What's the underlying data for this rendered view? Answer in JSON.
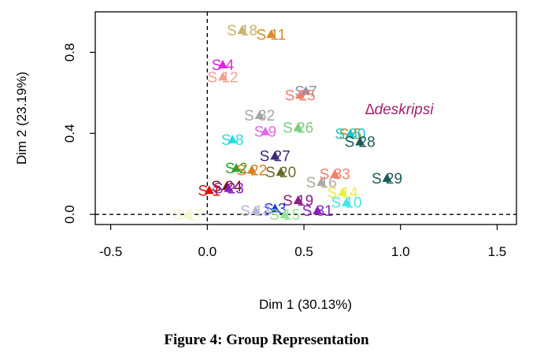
{
  "caption": "Figure 4: Group Representation",
  "chart_data": {
    "type": "scatter",
    "xlabel": "Dim 1 (30.13%)",
    "ylabel": "Dim 2 (23.19%)",
    "xlim": [
      -0.58,
      1.6
    ],
    "ylim": [
      -0.05,
      1.0
    ],
    "xticks": [
      "-0.5",
      "0.0",
      "0.5",
      "1.0",
      "1.5"
    ],
    "yticks": [
      "0.0",
      "0.4",
      "0.8"
    ],
    "reference_lines": {
      "x": 0,
      "y": 0
    },
    "legend": {
      "text": "∆deskripsi",
      "color": "#a0206e"
    },
    "points": [
      {
        "label": "S 18",
        "x": 0.18,
        "y": 0.91,
        "color": "#c8b46e"
      },
      {
        "label": "S 11",
        "x": 0.33,
        "y": 0.89,
        "color": "#d98c2a"
      },
      {
        "label": "S 4",
        "x": 0.08,
        "y": 0.74,
        "color": "#e024e0"
      },
      {
        "label": "S 7",
        "x": 0.51,
        "y": 0.61,
        "color": "#8a8fa8"
      },
      {
        "label": "S 12",
        "x": 0.08,
        "y": 0.68,
        "color": "#f4a090"
      },
      {
        "label": "S 25",
        "x": 0.48,
        "y": 0.59,
        "color": "#f07f6a"
      },
      {
        "label": "S 32",
        "x": 0.27,
        "y": 0.49,
        "color": "#a5a5a5"
      },
      {
        "label": "S 26",
        "x": 0.47,
        "y": 0.43,
        "color": "#7fcc7f"
      },
      {
        "label": "S 5",
        "x": 0.74,
        "y": 0.4,
        "color": "#bb8a2c"
      },
      {
        "label": "S 8",
        "x": 0.13,
        "y": 0.37,
        "color": "#28dede"
      },
      {
        "label": "S 9",
        "x": 0.3,
        "y": 0.41,
        "color": "#e36ae3"
      },
      {
        "label": "S 30",
        "x": 0.74,
        "y": 0.4,
        "color": "#22c8c8"
      },
      {
        "label": "S 28",
        "x": 0.79,
        "y": 0.36,
        "color": "#1e5a5a"
      },
      {
        "label": "S 27",
        "x": 0.35,
        "y": 0.29,
        "color": "#3c2a78"
      },
      {
        "label": "S 2",
        "x": 0.15,
        "y": 0.23,
        "color": "#2ea02e"
      },
      {
        "label": "S 22",
        "x": 0.23,
        "y": 0.22,
        "color": "#d7801c"
      },
      {
        "label": "S 20",
        "x": 0.38,
        "y": 0.21,
        "color": "#6a6a2a"
      },
      {
        "label": "S 16",
        "x": 0.59,
        "y": 0.16,
        "color": "#b0a8a0"
      },
      {
        "label": "S 33",
        "x": 0.66,
        "y": 0.2,
        "color": "#f07f6a"
      },
      {
        "label": "S 29",
        "x": 0.93,
        "y": 0.18,
        "color": "#1e5a5a"
      },
      {
        "label": "S 24",
        "x": 0.1,
        "y": 0.14,
        "color": "#7f1010"
      },
      {
        "label": "S 1",
        "x": 0.01,
        "y": 0.12,
        "color": "#e01010"
      },
      {
        "label": "S 23",
        "x": 0.11,
        "y": 0.13,
        "color": "#8a20c0"
      },
      {
        "label": "S 14",
        "x": 0.7,
        "y": 0.11,
        "color": "#eeee40"
      },
      {
        "label": "S 19",
        "x": 0.47,
        "y": 0.07,
        "color": "#8a2080"
      },
      {
        "label": "S 10",
        "x": 0.72,
        "y": 0.06,
        "color": "#40e8e8"
      },
      {
        "label": "S 3",
        "x": 0.35,
        "y": 0.03,
        "color": "#1e3cc8"
      },
      {
        "label": "S 13",
        "x": 0.25,
        "y": 0.02,
        "color": "#b4b4d2"
      },
      {
        "label": "S 15",
        "x": 0.4,
        "y": 0.0,
        "color": "#90e690"
      },
      {
        "label": "S 31",
        "x": 0.57,
        "y": 0.02,
        "color": "#8a20c0"
      },
      {
        "label": "S 17",
        "x": -0.1,
        "y": 0.0,
        "color": "#f4f4c8"
      }
    ]
  }
}
